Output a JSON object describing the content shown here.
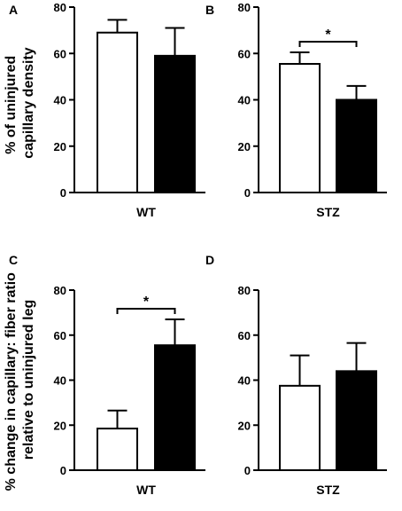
{
  "figure": {
    "ylabel_top_line1": "% of uninjured",
    "ylabel_top_line2": "capillary density",
    "ylabel_bottom_line1": "% change in capillary: fiber ratio",
    "ylabel_bottom_line2": "relative to uninjured leg"
  },
  "colors": {
    "open_bar": "#ffffff",
    "filled_bar": "#000000",
    "stroke": "#000000"
  },
  "chart_data": [
    {
      "panel": "A",
      "type": "bar",
      "xlabel": "WT",
      "ylim": [
        0,
        80
      ],
      "yticks": [
        0,
        20,
        40,
        60,
        80
      ],
      "values": [
        69,
        59
      ],
      "errors": [
        5.5,
        12
      ],
      "fill": [
        "open",
        "filled"
      ],
      "significance": null
    },
    {
      "panel": "B",
      "type": "bar",
      "xlabel": "STZ",
      "ylim": [
        0,
        80
      ],
      "yticks": [
        0,
        20,
        40,
        60,
        80
      ],
      "values": [
        55.5,
        40
      ],
      "errors": [
        5,
        6
      ],
      "fill": [
        "open",
        "filled"
      ],
      "significance": "*"
    },
    {
      "panel": "C",
      "type": "bar",
      "xlabel": "WT",
      "ylim": [
        0,
        80
      ],
      "yticks": [
        0,
        20,
        40,
        60,
        80
      ],
      "values": [
        18.5,
        55.5
      ],
      "errors": [
        8,
        11.5
      ],
      "fill": [
        "open",
        "filled"
      ],
      "significance": "*"
    },
    {
      "panel": "D",
      "type": "bar",
      "xlabel": "STZ",
      "ylim": [
        0,
        80
      ],
      "yticks": [
        0,
        20,
        40,
        60,
        80
      ],
      "values": [
        37.5,
        44
      ],
      "errors": [
        13.5,
        12.5
      ],
      "fill": [
        "open",
        "filled"
      ],
      "significance": null
    }
  ]
}
